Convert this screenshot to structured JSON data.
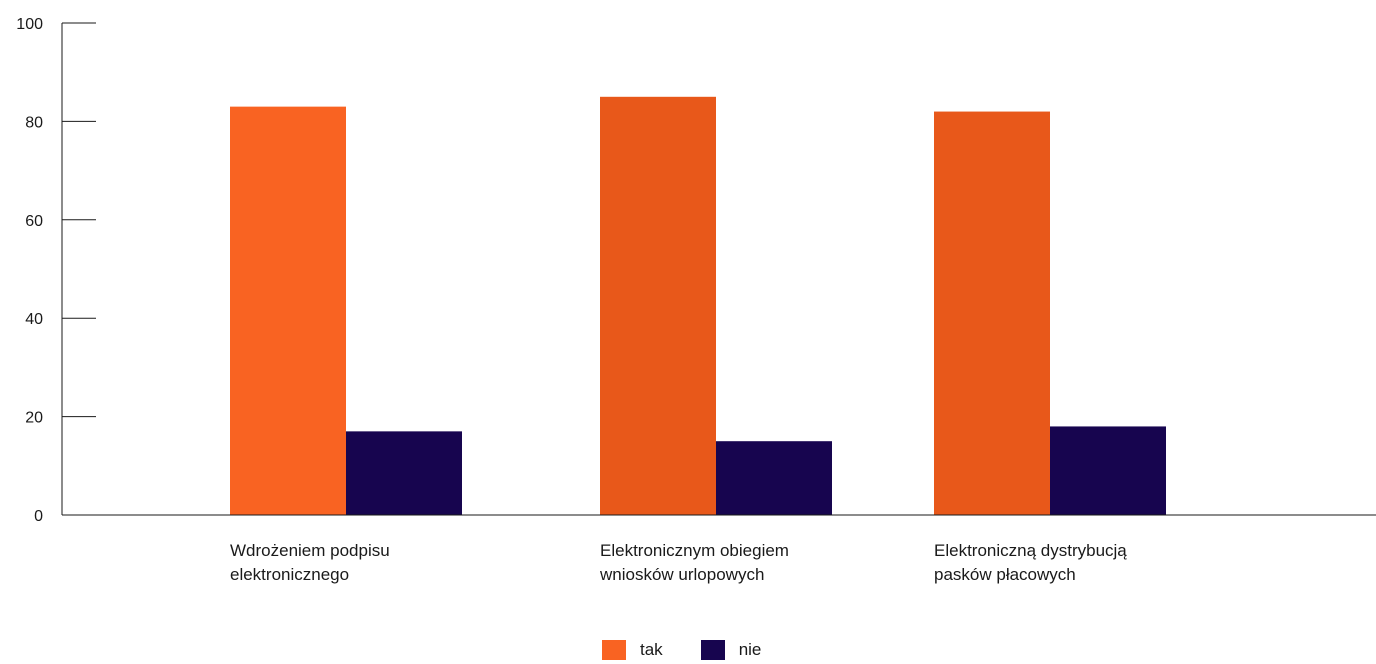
{
  "chart_data": {
    "type": "bar",
    "categories": [
      [
        "Wdrożeniem podpisu",
        "elektronicznego"
      ],
      [
        "Elektronicznym obiegiem",
        "wniosków urlopowych"
      ],
      [
        "Elektroniczną dystrybucją",
        "pasków płacowych"
      ]
    ],
    "series": [
      {
        "name": "tak",
        "values": [
          83,
          85,
          82
        ],
        "colors": [
          "#f96322",
          "#e8581a",
          "#e8581a"
        ]
      },
      {
        "name": "nie",
        "values": [
          17,
          15,
          18
        ],
        "colors": [
          "#17054f",
          "#17054f",
          "#17054f"
        ]
      }
    ],
    "ylim": [
      0,
      100
    ],
    "yticks": [
      0,
      20,
      40,
      60,
      80,
      100
    ],
    "legend_position": "bottom-center",
    "grid": false
  }
}
